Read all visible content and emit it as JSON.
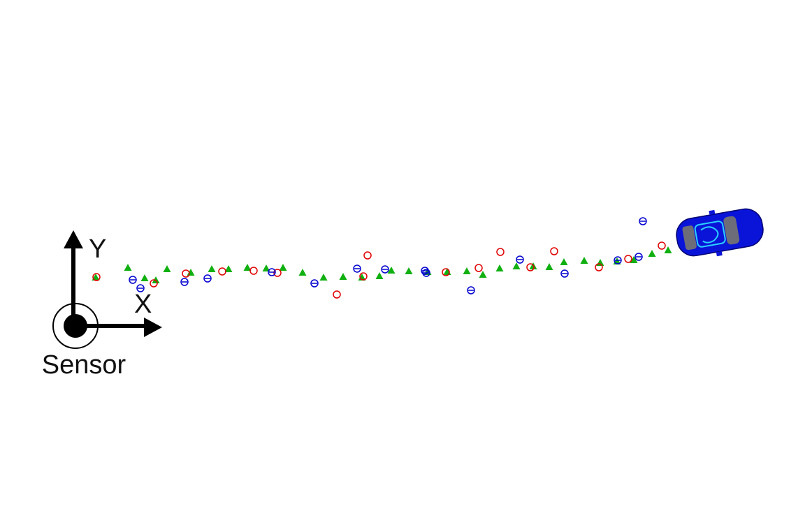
{
  "labels": {
    "y_axis": "Y",
    "x_axis": "X",
    "sensor": "Sensor"
  }
}
